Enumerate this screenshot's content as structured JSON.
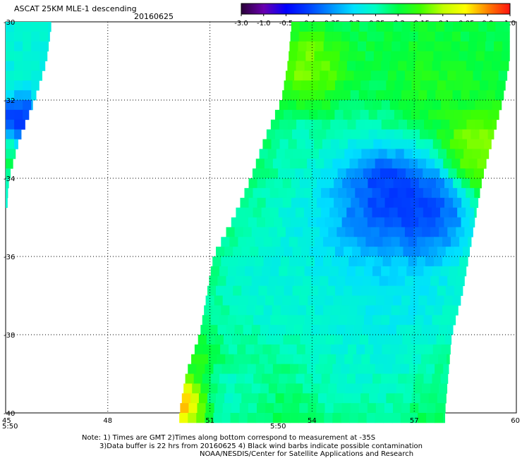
{
  "header": {
    "title": "ASCAT 25KM MLE-1 descending",
    "date": "20160625"
  },
  "colorbar": {
    "tick_labels": [
      "-3.0",
      "-1.0",
      "-0.5",
      "-0.4",
      "-0.35",
      "-0.3",
      "-0.25",
      "-0.2",
      "-0.15",
      "-0.1",
      "-0.05",
      "0.0",
      "1.0"
    ],
    "colors": [
      "#2a0038",
      "#6a00b0",
      "#0000ff",
      "#0040ff",
      "#0090ff",
      "#00e0ff",
      "#00ffc0",
      "#00ff40",
      "#40ff00",
      "#c0ff00",
      "#ffff00",
      "#ff8000",
      "#ff1010"
    ]
  },
  "times": {
    "left": "5:50",
    "middle": "5:50",
    "color": "#ff0000"
  },
  "notes": {
    "line1": "Note: 1) Times are GMT 2)Times along bottom correspond to measurement at -35S",
    "line2": "3)Data buffer is 22 hrs from 20160625 4) Black wind barbs indicate possible contamination",
    "line3": "NOAA/NESDIS/Center for Satellite Applications and Research"
  },
  "chart_data": {
    "type": "heatmap",
    "title": "ASCAT 25KM MLE-1 descending",
    "subtitle": "20160625",
    "xlabel": "",
    "ylabel": "",
    "xlim": [
      45,
      60
    ],
    "ylim": [
      -40,
      -30
    ],
    "x_ticks": [
      45,
      48,
      51,
      54,
      57,
      60
    ],
    "y_ticks": [
      -30,
      -32,
      -34,
      -36,
      -38,
      -40
    ],
    "x_tick_labels": [
      "45",
      "48",
      "51",
      "54",
      "57",
      "60"
    ],
    "y_tick_labels": [
      "-30",
      "-32",
      "-34",
      "-36",
      "-38",
      "-40"
    ],
    "grid": true,
    "color_scale": [
      -3.0,
      -1.0,
      -0.5,
      -0.4,
      -0.35,
      -0.3,
      -0.25,
      -0.2,
      -0.15,
      -0.1,
      -0.05,
      0.0,
      1.0
    ],
    "cell_size_deg": 0.25,
    "swaths": [
      {
        "lat_range": [
          -34.5,
          -30
        ],
        "west_edge_lon": [
          [
            -30,
            45
          ],
          [
            -34.5,
            45
          ]
        ],
        "east_edge_lon": [
          [
            -30,
            46.35
          ],
          [
            -31,
            46.2
          ],
          [
            -32,
            45.85
          ],
          [
            -33,
            45.4
          ],
          [
            -34,
            45.1
          ],
          [
            -34.5,
            45.05
          ]
        ],
        "base_value": -0.27,
        "features": [
          {
            "lat": -32.6,
            "lon": 45.4,
            "radius": 0.5,
            "value": -0.48,
            "weight": 0.9
          },
          {
            "lat": -33.3,
            "lon": 45.15,
            "radius": 0.5,
            "value": -0.17,
            "weight": 0.6
          }
        ]
      },
      {
        "lat_range": [
          -40,
          -30
        ],
        "west_edge_lon": [
          [
            -30,
            53.4
          ],
          [
            -31,
            53.3
          ],
          [
            -32,
            53.1
          ],
          [
            -33,
            52.6
          ],
          [
            -34,
            52.2
          ],
          [
            -35,
            51.7
          ],
          [
            -36,
            51.1
          ],
          [
            -37,
            50.9
          ],
          [
            -38,
            50.7
          ],
          [
            -39,
            50.3
          ],
          [
            -40,
            50.1
          ]
        ],
        "east_edge_lon": [
          [
            -30,
            59.8
          ],
          [
            -31,
            59.8
          ],
          [
            -32,
            59.6
          ],
          [
            -33,
            59.3
          ],
          [
            -34,
            59.0
          ],
          [
            -35,
            58.8
          ],
          [
            -36,
            58.6
          ],
          [
            -37,
            58.4
          ],
          [
            -38,
            58.1
          ],
          [
            -39,
            58.0
          ],
          [
            -40,
            57.9
          ]
        ],
        "base_value": -0.2,
        "features": [
          {
            "lat": -34.8,
            "lon": 55.9,
            "radius": 1.2,
            "value": -0.5,
            "weight": 1.0
          },
          {
            "lat": -34.9,
            "lon": 57.3,
            "radius": 1.0,
            "value": -0.47,
            "weight": 1.0
          },
          {
            "lat": -34.3,
            "lon": 56.3,
            "radius": 0.6,
            "value": -0.45,
            "weight": 0.8
          },
          {
            "lat": -35.6,
            "lon": 54.7,
            "radius": 2.0,
            "value": -0.3,
            "weight": 1.0
          },
          {
            "lat": -36.9,
            "lon": 56.5,
            "radius": 1.7,
            "value": -0.31,
            "weight": 1.0
          },
          {
            "lat": -38.8,
            "lon": 55.2,
            "radius": 1.4,
            "value": -0.27,
            "weight": 0.9
          },
          {
            "lat": -37.0,
            "lon": 52.4,
            "radius": 1.2,
            "value": -0.28,
            "weight": 0.8
          },
          {
            "lat": -39.5,
            "lon": 51.6,
            "radius": 0.9,
            "value": -0.27,
            "weight": 0.8
          },
          {
            "lat": -33.3,
            "lon": 58.9,
            "radius": 0.8,
            "value": -0.1,
            "weight": 1.0
          },
          {
            "lat": -31.2,
            "lon": 53.9,
            "radius": 0.7,
            "value": -0.1,
            "weight": 0.9
          },
          {
            "lat": -33.0,
            "lon": 53.6,
            "radius": 0.6,
            "value": -0.26,
            "weight": 0.6
          },
          {
            "lat": -39.7,
            "lon": 50.3,
            "radius": 0.5,
            "value": 0.05,
            "weight": 0.9
          },
          {
            "lat": -38.6,
            "lon": 50.8,
            "radius": 0.4,
            "value": -0.15,
            "weight": 0.7
          },
          {
            "lat": -31.5,
            "lon": 57.6,
            "radius": 0.9,
            "value": -0.17,
            "weight": 0.6
          }
        ]
      }
    ]
  }
}
